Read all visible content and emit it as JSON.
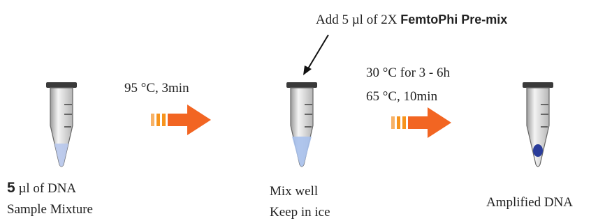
{
  "annotation": {
    "prefix": "Add 5 µl of 2X",
    "highlight": "FemtoPhi Pre-mix"
  },
  "tubes": [
    {
      "emphasis": "5",
      "lines": [
        "µl of DNA",
        "Sample Mixture"
      ]
    },
    {
      "lines": [
        "Mix well",
        "Keep in ice"
      ]
    },
    {
      "lines": [
        "Amplified DNA"
      ]
    }
  ],
  "arrows": [
    {
      "condition_lines": [
        "95 °C, 3min"
      ]
    },
    {
      "condition_lines": [
        "30 °C for 3 - 6h",
        "65 °C, 10min"
      ]
    }
  ]
}
